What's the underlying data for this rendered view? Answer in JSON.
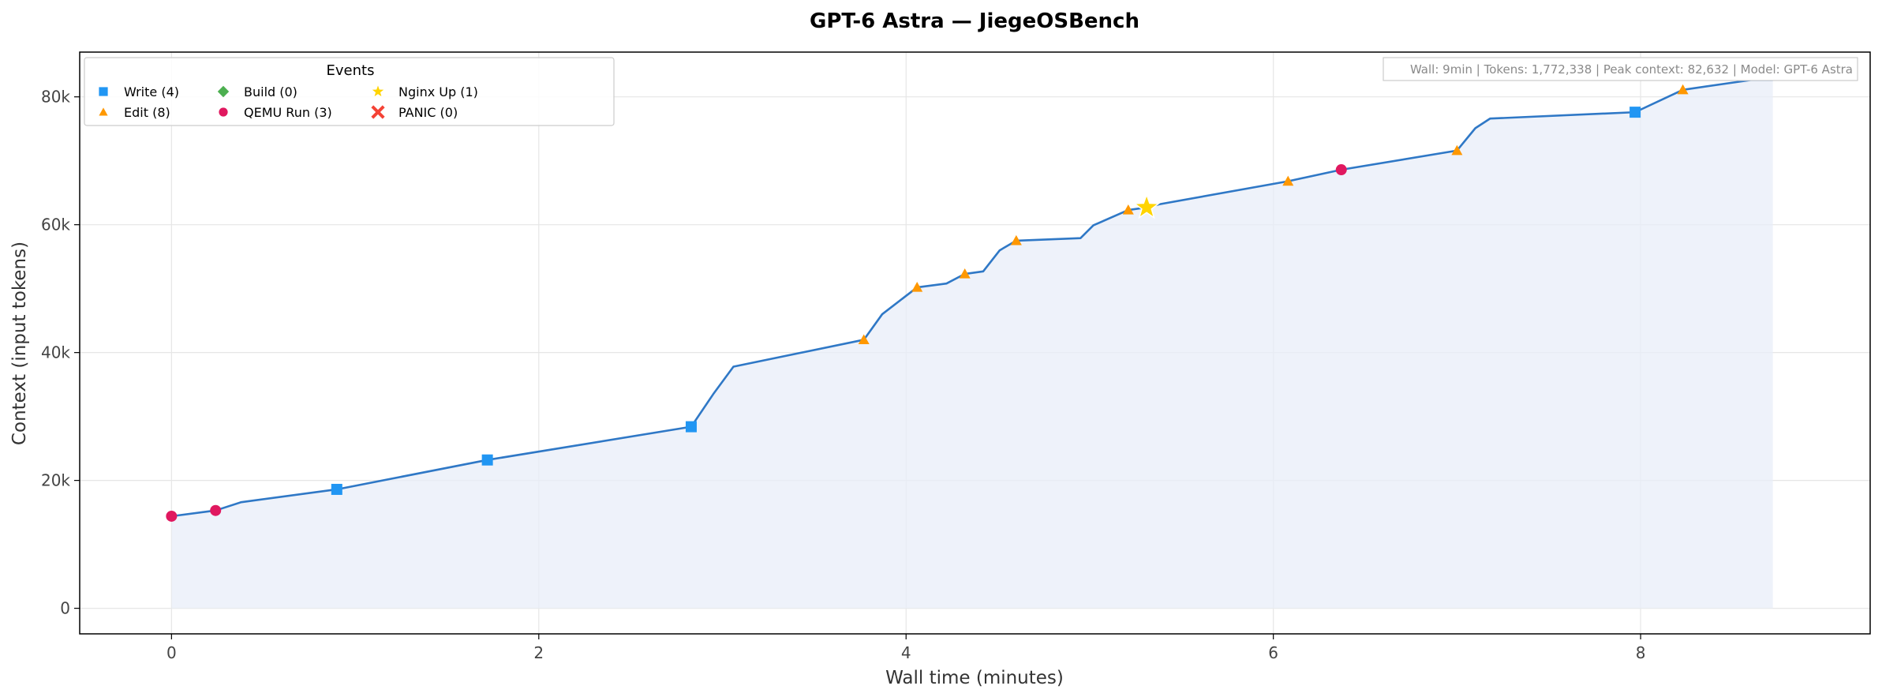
{
  "chart_data": {
    "type": "line",
    "title": "GPT-6 Astra — JiegeOSBench",
    "xlabel": "Wall time (minutes)",
    "ylabel": "Context (input tokens)",
    "xlim": [
      -0.5,
      9.25
    ],
    "ylim": [
      -4000,
      87000
    ],
    "x_ticks": [
      0,
      2,
      4,
      6,
      8
    ],
    "x_tick_labels": [
      "0",
      "2",
      "4",
      "6",
      "8"
    ],
    "y_ticks": [
      0,
      20000,
      40000,
      60000,
      80000
    ],
    "y_tick_labels": [
      "0",
      "20k",
      "40k",
      "60k",
      "80k"
    ],
    "grid": true,
    "area_fill": true,
    "colors": {
      "line": "#2f78c6",
      "fill": "#e8eef8",
      "write": "#2196f3",
      "edit": "#ff9800",
      "build": "#4caf50",
      "qemu": "#e0185f",
      "nginx": "#ffd400",
      "panic": "#f44336"
    },
    "series": [
      {
        "x": [
          0,
          0.24,
          0.38,
          0.9,
          1.72,
          2.83,
          2.95,
          3.06,
          3.77,
          3.87,
          4.06,
          4.22,
          4.32,
          4.42,
          4.51,
          4.6,
          4.95,
          5.02,
          5.21,
          5.31,
          5.38,
          6.08,
          6.37,
          7.0,
          7.1,
          7.18,
          7.97,
          8.23,
          8.6,
          8.72
        ],
        "y": [
          14400,
          15300,
          16600,
          18600,
          23200,
          28400,
          33500,
          37800,
          42000,
          46000,
          50200,
          50800,
          52300,
          52700,
          56000,
          57500,
          57900,
          59900,
          62300,
          62700,
          63200,
          66800,
          68600,
          71600,
          75100,
          76600,
          77600,
          81100,
          82632,
          82632
        ]
      }
    ],
    "legend": {
      "title": "Events",
      "position": "top-left",
      "entries": [
        {
          "key": "write",
          "label": "Write (4)",
          "marker": "square"
        },
        {
          "key": "edit",
          "label": "Edit (8)",
          "marker": "triangle"
        },
        {
          "key": "build",
          "label": "Build (0)",
          "marker": "diamond"
        },
        {
          "key": "qemu",
          "label": "QEMU Run (3)",
          "marker": "circle"
        },
        {
          "key": "nginx",
          "label": "Nginx Up (1)",
          "marker": "star"
        },
        {
          "key": "panic",
          "label": "PANIC (0)",
          "marker": "x"
        }
      ]
    },
    "events": [
      {
        "type": "qemu",
        "x": 0,
        "y": 14400
      },
      {
        "type": "qemu",
        "x": 0.24,
        "y": 15300
      },
      {
        "type": "write",
        "x": 0.9,
        "y": 18600
      },
      {
        "type": "write",
        "x": 1.72,
        "y": 23200
      },
      {
        "type": "write",
        "x": 2.83,
        "y": 28400
      },
      {
        "type": "edit",
        "x": 3.77,
        "y": 42000
      },
      {
        "type": "edit",
        "x": 4.06,
        "y": 50200
      },
      {
        "type": "edit",
        "x": 4.32,
        "y": 52300
      },
      {
        "type": "edit",
        "x": 4.6,
        "y": 57500
      },
      {
        "type": "edit",
        "x": 5.21,
        "y": 62300
      },
      {
        "type": "nginx",
        "x": 5.31,
        "y": 62700
      },
      {
        "type": "edit",
        "x": 6.08,
        "y": 66800
      },
      {
        "type": "qemu",
        "x": 6.37,
        "y": 68600
      },
      {
        "type": "edit",
        "x": 7.0,
        "y": 71600
      },
      {
        "type": "write",
        "x": 7.97,
        "y": 77600
      },
      {
        "type": "edit",
        "x": 8.23,
        "y": 81100
      }
    ],
    "annotation": "Wall: 9min | Tokens: 1,772,338 | Peak context: 82,632 | Model: GPT-6 Astra"
  }
}
